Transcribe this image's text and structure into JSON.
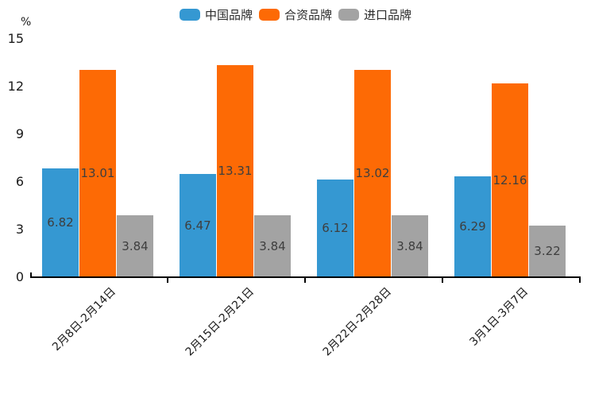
{
  "chart_data": {
    "type": "bar",
    "title": "",
    "categories": [
      "2月8日-2月14日",
      "2月15日-2月21日",
      "2月22日-2月28日",
      "3月1日-3月7日"
    ],
    "series": [
      {
        "name": "中国品牌",
        "color": "#3598d2",
        "values": [
          6.82,
          6.47,
          6.12,
          6.29
        ]
      },
      {
        "name": "合资品牌",
        "color": "#fd6a05",
        "values": [
          13.01,
          13.31,
          13.02,
          12.16
        ]
      },
      {
        "name": "进口品牌",
        "color": "#a3a3a3",
        "values": [
          3.84,
          3.84,
          3.84,
          3.22
        ]
      }
    ],
    "y_axis": {
      "unit_label": "%",
      "ticks": [
        0,
        3,
        6,
        9,
        12,
        15
      ],
      "min": 0,
      "max": 15
    },
    "value_labels": "inside-center, two decimals",
    "legend_position": "top-center",
    "x_label_rotation_deg": 45,
    "grid": false,
    "colors": {
      "axis": "#000000",
      "tick_text": "#1a1a1a",
      "value_label_text": "#3e3e3e",
      "background": "#ffffff"
    }
  }
}
